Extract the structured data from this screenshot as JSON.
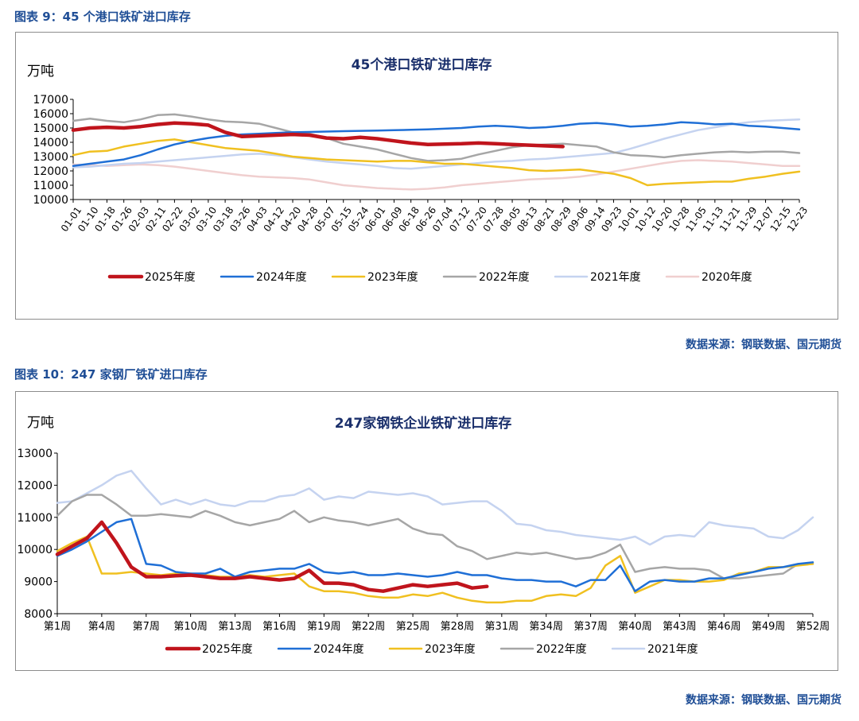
{
  "fig1": {
    "caption": "图表 9：45 个港口铁矿进口库存",
    "source": "数据来源：钢联数据、国元期货",
    "chart_data": {
      "type": "line",
      "title": "45个港口铁矿进口库存",
      "ylabel": "万吨",
      "ylim": [
        10000,
        17000
      ],
      "yticks": [
        10000,
        11000,
        12000,
        13000,
        14000,
        15000,
        16000,
        17000
      ],
      "x_ticklabels": [
        "01-01",
        "01-10",
        "01-18",
        "01-26",
        "02-03",
        "02-11",
        "02-22",
        "03-02",
        "03-10",
        "03-18",
        "03-26",
        "04-03",
        "04-12",
        "04-20",
        "04-28",
        "05-07",
        "05-15",
        "05-24",
        "06-01",
        "06-09",
        "06-18",
        "06-26",
        "07-04",
        "07-12",
        "07-20",
        "07-28",
        "08-05",
        "08-13",
        "08-21",
        "08-29",
        "09-06",
        "09-14",
        "09-23",
        "10-01",
        "10-12",
        "10-20",
        "10-28",
        "11-05",
        "11-13",
        "11-21",
        "11-29",
        "12-07",
        "12-15",
        "12-23"
      ],
      "legend_position": "bottom",
      "series": [
        {
          "name": "2025年度",
          "color": "#c0141c",
          "width": 4.5,
          "values": [
            14850,
            15000,
            15050,
            15000,
            15100,
            15250,
            15350,
            15300,
            15200,
            14700,
            14400,
            14450,
            14500,
            14550,
            14500,
            14300,
            14250,
            14350,
            14250,
            14100,
            13950,
            13850,
            13880,
            13900,
            13950,
            13900,
            13850,
            13800,
            13750,
            13700
          ]
        },
        {
          "name": "2024年度",
          "color": "#1f6fd6",
          "width": 2.5,
          "values": [
            12350,
            12500,
            12650,
            12800,
            13100,
            13500,
            13850,
            14100,
            14300,
            14450,
            14550,
            14600,
            14650,
            14700,
            14720,
            14750,
            14780,
            14800,
            14820,
            14850,
            14870,
            14900,
            14950,
            15000,
            15100,
            15150,
            15100,
            15000,
            15050,
            15150,
            15300,
            15350,
            15250,
            15100,
            15150,
            15250,
            15400,
            15350,
            15250,
            15300,
            15150,
            15100,
            15000,
            14900
          ]
        },
        {
          "name": "2023年度",
          "color": "#f0c020",
          "width": 2.5,
          "values": [
            13100,
            13350,
            13400,
            13700,
            13900,
            14100,
            14200,
            14000,
            13800,
            13600,
            13500,
            13400,
            13200,
            13000,
            12900,
            12800,
            12750,
            12700,
            12650,
            12700,
            12700,
            12600,
            12500,
            12500,
            12400,
            12300,
            12200,
            12050,
            12000,
            12050,
            12100,
            11950,
            11800,
            11500,
            11000,
            11100,
            11150,
            11200,
            11250,
            11250,
            11450,
            11600,
            11800,
            11950
          ]
        },
        {
          "name": "2022年度",
          "color": "#a6a6a6",
          "width": 2.5,
          "values": [
            15500,
            15650,
            15500,
            15400,
            15600,
            15900,
            15950,
            15800,
            15600,
            15450,
            15400,
            15300,
            15000,
            14700,
            14600,
            14300,
            13900,
            13700,
            13500,
            13200,
            12900,
            12700,
            12750,
            12850,
            13150,
            13400,
            13650,
            13800,
            13850,
            13900,
            13800,
            13700,
            13300,
            13100,
            13050,
            12950,
            13100,
            13200,
            13300,
            13350,
            13300,
            13350,
            13350,
            13250
          ]
        },
        {
          "name": "2021年度",
          "color": "#c5d3f0",
          "width": 2.5,
          "values": [
            12250,
            12300,
            12400,
            12500,
            12550,
            12650,
            12750,
            12850,
            12950,
            13050,
            13150,
            13200,
            13100,
            12950,
            12800,
            12650,
            12550,
            12450,
            12350,
            12200,
            12150,
            12250,
            12350,
            12450,
            12550,
            12650,
            12700,
            12800,
            12850,
            12950,
            13050,
            13150,
            13250,
            13550,
            13900,
            14250,
            14550,
            14850,
            15050,
            15250,
            15400,
            15500,
            15550,
            15600
          ]
        },
        {
          "name": "2020年度",
          "color": "#f0cfcf",
          "width": 2.5,
          "values": [
            12450,
            12400,
            12350,
            12400,
            12450,
            12400,
            12300,
            12150,
            12000,
            11850,
            11700,
            11600,
            11550,
            11500,
            11400,
            11200,
            11000,
            10900,
            10800,
            10750,
            10700,
            10750,
            10850,
            11000,
            11100,
            11200,
            11300,
            11400,
            11450,
            11500,
            11600,
            11750,
            11950,
            12150,
            12350,
            12550,
            12700,
            12750,
            12700,
            12650,
            12550,
            12450,
            12350,
            12350
          ]
        }
      ]
    }
  },
  "fig2": {
    "caption": "图表 10：247 家钢厂铁矿进口库存",
    "source": "数据来源：钢联数据、国元期货",
    "chart_data": {
      "type": "line",
      "title": "247家钢铁企业铁矿进口库存",
      "ylabel": "万吨",
      "ylim": [
        8000,
        13000
      ],
      "yticks": [
        8000,
        9000,
        10000,
        11000,
        12000,
        13000
      ],
      "x_ticklabels": [
        "第1周",
        "第4周",
        "第7周",
        "第10周",
        "第13周",
        "第16周",
        "第19周",
        "第22周",
        "第25周",
        "第28周",
        "第31周",
        "第34周",
        "第37周",
        "第40周",
        "第43周",
        "第46周",
        "第49周",
        "第52周"
      ],
      "legend_position": "bottom",
      "series": [
        {
          "name": "2025年度",
          "color": "#c0141c",
          "width": 4.5,
          "values": [
            9850,
            10100,
            10350,
            10850,
            10200,
            9450,
            9150,
            9150,
            9180,
            9200,
            9150,
            9100,
            9100,
            9150,
            9100,
            9050,
            9100,
            9350,
            8950,
            8950,
            8900,
            8750,
            8700,
            8800,
            8900,
            8850,
            8900,
            8950,
            8800,
            8850
          ]
        },
        {
          "name": "2024年度",
          "color": "#1f6fd6",
          "width": 2.5,
          "values": [
            9800,
            10000,
            10250,
            10550,
            10850,
            10950,
            9550,
            9500,
            9300,
            9250,
            9250,
            9400,
            9150,
            9300,
            9350,
            9400,
            9400,
            9550,
            9300,
            9250,
            9300,
            9200,
            9200,
            9250,
            9200,
            9150,
            9200,
            9300,
            9200,
            9200,
            9100,
            9050,
            9050,
            9000,
            9000,
            8850,
            9050,
            9050,
            9500,
            8700,
            9000,
            9050,
            9000,
            9000,
            9100,
            9100,
            9200,
            9300,
            9400,
            9450,
            9550,
            9600
          ]
        },
        {
          "name": "2023年度",
          "color": "#f0c020",
          "width": 2.5,
          "values": [
            9950,
            10200,
            10400,
            9250,
            9250,
            9300,
            9250,
            9200,
            9250,
            9250,
            9200,
            9150,
            9150,
            9200,
            9150,
            9200,
            9250,
            8850,
            8700,
            8700,
            8650,
            8550,
            8500,
            8500,
            8600,
            8550,
            8650,
            8500,
            8400,
            8350,
            8350,
            8400,
            8400,
            8550,
            8600,
            8550,
            8800,
            9500,
            9800,
            8650,
            8850,
            9050,
            9050,
            9000,
            9000,
            9050,
            9250,
            9300,
            9450,
            9450,
            9500,
            9550
          ]
        },
        {
          "name": "2022年度",
          "color": "#a6a6a6",
          "width": 2.5,
          "values": [
            11050,
            11500,
            11700,
            11700,
            11400,
            11050,
            11050,
            11100,
            11050,
            11000,
            11200,
            11050,
            10850,
            10750,
            10850,
            10950,
            11200,
            10850,
            11000,
            10900,
            10850,
            10750,
            10850,
            10950,
            10650,
            10500,
            10450,
            10100,
            9950,
            9700,
            9800,
            9900,
            9850,
            9900,
            9800,
            9700,
            9750,
            9900,
            10150,
            9300,
            9400,
            9450,
            9400,
            9400,
            9350,
            9100,
            9100,
            9150,
            9200,
            9250,
            9550,
            9550
          ]
        },
        {
          "name": "2021年度",
          "color": "#c5d3f0",
          "width": 2.5,
          "values": [
            11450,
            11500,
            11750,
            12000,
            12300,
            12450,
            11900,
            11400,
            11550,
            11400,
            11550,
            11400,
            11350,
            11500,
            11500,
            11650,
            11700,
            11900,
            11550,
            11650,
            11600,
            11800,
            11750,
            11700,
            11750,
            11650,
            11400,
            11450,
            11500,
            11500,
            11200,
            10800,
            10750,
            10600,
            10550,
            10450,
            10400,
            10350,
            10300,
            10400,
            10150,
            10400,
            10450,
            10400,
            10850,
            10750,
            10700,
            10650,
            10400,
            10350,
            10600,
            11000
          ]
        }
      ]
    }
  }
}
